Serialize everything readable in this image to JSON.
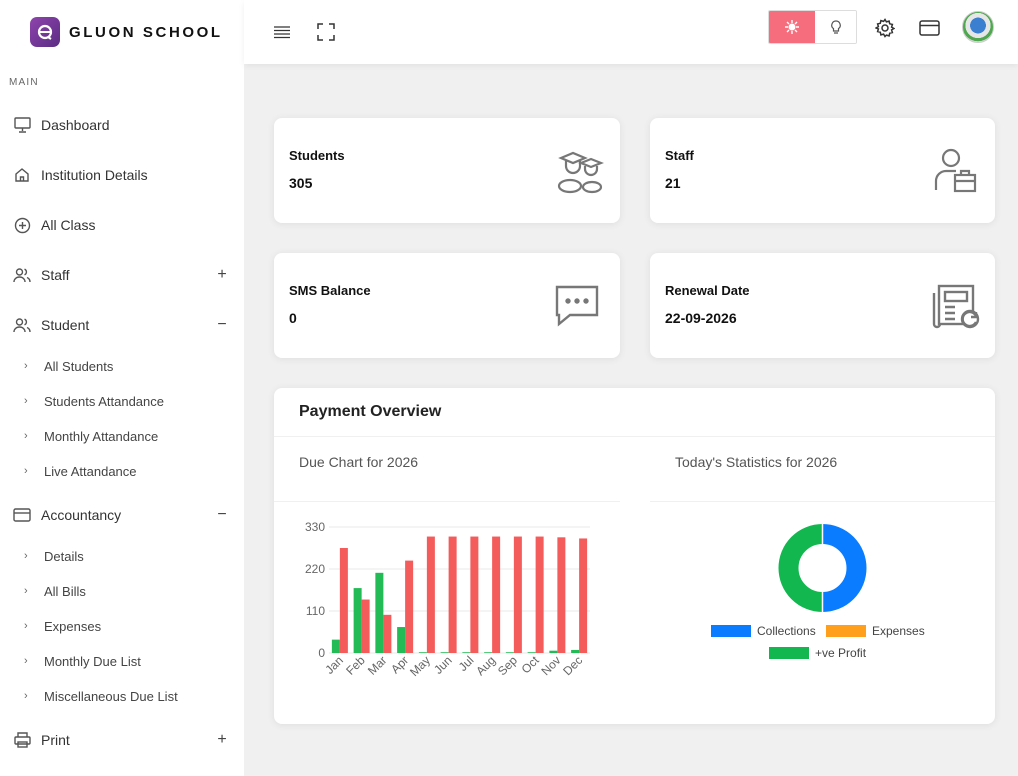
{
  "brand": {
    "name": "GLUON SCHOOL"
  },
  "sidebar": {
    "caption": "MAIN",
    "items": [
      {
        "label": "Dashboard"
      },
      {
        "label": "Institution Details"
      },
      {
        "label": "All Class"
      },
      {
        "label": "Staff",
        "toggle": "+"
      },
      {
        "label": "Student",
        "toggle": "−"
      },
      {
        "label": "Accountancy",
        "toggle": "−"
      },
      {
        "label": "Print",
        "toggle": "+"
      }
    ],
    "student_sub": [
      "All Students",
      "Students Attandance",
      "Monthly Attandance",
      "Live Attandance"
    ],
    "accountancy_sub": [
      "Details",
      "All Bills",
      "Expenses",
      "Monthly Due List",
      "Miscellaneous Due List"
    ]
  },
  "stats": [
    {
      "title": "Students",
      "value": "305",
      "icon": "graduates-icon"
    },
    {
      "title": "Staff",
      "value": "21",
      "icon": "staff-icon"
    },
    {
      "title": "SMS Balance",
      "value": "0",
      "icon": "message-icon"
    },
    {
      "title": "Renewal Date",
      "value": "22-09-2026",
      "icon": "renewal-icon"
    }
  ],
  "payment_overview": {
    "title": "Payment Overview",
    "due_chart_title": "Due Chart for 2026",
    "stats_title": "Today's Statistics for 2026"
  },
  "chart_data": [
    {
      "type": "bar",
      "categories": [
        "Jan",
        "Feb",
        "Mar",
        "Apr",
        "May",
        "Jun",
        "Jul",
        "Aug",
        "Sep",
        "Oct",
        "Nov",
        "Dec"
      ],
      "series": [
        {
          "color": "#22bb55",
          "values": [
            35,
            170,
            210,
            68,
            2,
            2,
            2,
            2,
            2,
            2,
            6,
            8
          ]
        },
        {
          "color": "#f45b5b",
          "values": [
            275,
            140,
            100,
            242,
            305,
            305,
            305,
            305,
            305,
            305,
            303,
            300
          ]
        }
      ],
      "yticks": [
        0,
        110,
        220,
        330
      ],
      "ylim": [
        0,
        330
      ]
    },
    {
      "type": "pie",
      "labels": [
        "Collections",
        "Expenses",
        "+ve Profit"
      ],
      "colors": [
        "#0a7cff",
        "#ff9f1c",
        "#12b84f"
      ],
      "values": [
        50,
        0,
        50
      ]
    }
  ]
}
